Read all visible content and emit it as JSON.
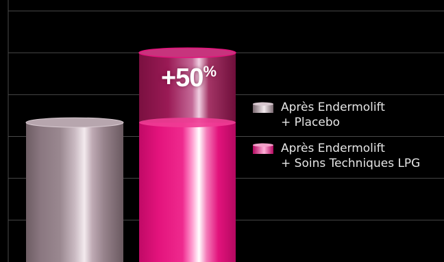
{
  "chart_data": {
    "type": "bar",
    "categories": [
      "Après Endermolift\n+ Placebo",
      "Après Endermolift\n+ Soins Techniques LPG"
    ],
    "values": [
      100,
      150
    ],
    "baseline_value": 100,
    "gain_label": "+50",
    "gain_unit": "%",
    "grid": true,
    "gridline_count": 6,
    "style": "3d-cylinder",
    "legend": {
      "placement": "right",
      "entries": [
        "Après Endermolift\n+ Placebo",
        "Après Endermolift\n+ Soins Techniques LPG"
      ]
    },
    "colors": {
      "placebo": "#a08a92",
      "lpg": "#e0127a",
      "lpg_highlight": "#ffffff",
      "grid": "#4a4a4a",
      "background": "#000000"
    }
  }
}
